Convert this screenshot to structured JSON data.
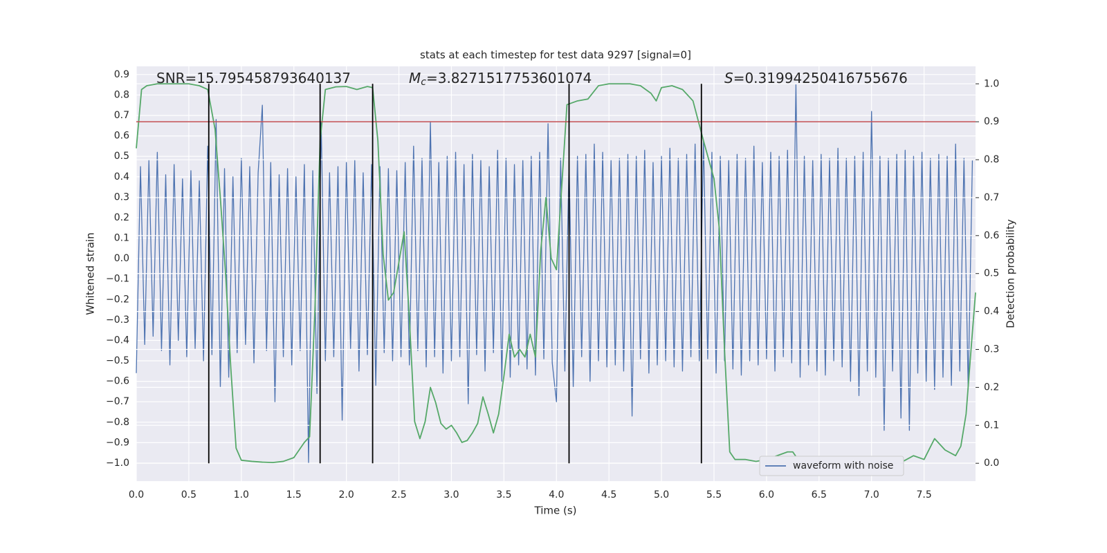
{
  "chart_data": {
    "type": "line",
    "title": "stats at each timestep for test data 9297 [signal=0]",
    "xlabel": "Time (s)",
    "ylabel": "Whitened strain",
    "y2label": "Detection probability",
    "annotations": [
      {
        "text": "SNR=15.795458793640137"
      },
      {
        "italic": "M",
        "subscript": "c",
        "text": "=3.8271517753601074"
      },
      {
        "italic": "S",
        "text": "=0.31994250416755676"
      }
    ],
    "xlim": [
      0,
      7.99
    ],
    "ylim": [
      -1.088,
      0.94
    ],
    "y2lim": [
      -0.047,
      1.046
    ],
    "xticks": [
      {
        "value": 0,
        "label": "0.0"
      },
      0.5,
      {
        "value": 1,
        "label": "1.0"
      },
      1.5,
      {
        "value": 2,
        "label": "2.0"
      },
      2.5,
      {
        "value": 3,
        "label": "3.0"
      },
      3.5,
      {
        "value": 4,
        "label": "4.0"
      },
      4.5,
      {
        "value": 5,
        "label": "5.0"
      },
      5.5,
      {
        "value": 6,
        "label": "6.0"
      },
      6.5,
      {
        "value": 7,
        "label": "7.0"
      },
      7.5
    ],
    "yticks": [
      0.9,
      0.8,
      0.7,
      0.6,
      0.5,
      0.4,
      0.3,
      0.2,
      0.1,
      {
        "value": 0,
        "label": "0.0"
      },
      {
        "value": -0.1,
        "label": "−0.1"
      },
      {
        "value": -0.2,
        "label": "−0.2"
      },
      {
        "value": -0.3,
        "label": "−0.3"
      },
      {
        "value": -0.4,
        "label": "−0.4"
      },
      {
        "value": -0.5,
        "label": "−0.5"
      },
      {
        "value": -0.6,
        "label": "−0.6"
      },
      {
        "value": -0.7,
        "label": "−0.7"
      },
      {
        "value": -0.8,
        "label": "−0.8"
      },
      {
        "value": -0.9,
        "label": "−0.9"
      },
      {
        "value": -1,
        "label": "−1.0"
      }
    ],
    "y2ticks": [
      {
        "value": 1,
        "label": "1.0"
      },
      0.9,
      0.8,
      0.7,
      0.6,
      0.5,
      0.4,
      0.3,
      0.2,
      0.1,
      {
        "value": 0,
        "label": "0.0"
      }
    ],
    "grid": true,
    "legend": "lower right",
    "background": "#eaeaf2",
    "series": [
      {
        "name": "waveform with noise",
        "color": "#4c72b0",
        "axis": "y",
        "x": [
          0,
          0.04,
          0.08,
          0.12,
          0.16,
          0.2,
          0.24,
          0.28,
          0.32,
          0.36,
          0.4,
          0.44,
          0.48,
          0.52,
          0.56,
          0.6,
          0.64,
          0.68,
          0.72,
          0.76,
          0.8,
          0.84,
          0.88,
          0.92,
          0.96,
          1,
          1.04,
          1.08,
          1.12,
          1.16,
          1.2,
          1.24,
          1.28,
          1.32,
          1.36,
          1.4,
          1.44,
          1.48,
          1.52,
          1.56,
          1.6,
          1.64,
          1.68,
          1.72,
          1.76,
          1.8,
          1.84,
          1.88,
          1.92,
          1.96,
          2,
          2.04,
          2.08,
          2.12,
          2.16,
          2.2,
          2.24,
          2.28,
          2.32,
          2.36,
          2.4,
          2.44,
          2.48,
          2.52,
          2.56,
          2.6,
          2.64,
          2.68,
          2.72,
          2.76,
          2.8,
          2.84,
          2.88,
          2.92,
          2.96,
          3,
          3.04,
          3.08,
          3.12,
          3.16,
          3.2,
          3.24,
          3.28,
          3.32,
          3.36,
          3.4,
          3.44,
          3.48,
          3.52,
          3.56,
          3.6,
          3.64,
          3.68,
          3.72,
          3.76,
          3.8,
          3.84,
          3.88,
          3.92,
          3.96,
          4,
          4.04,
          4.08,
          4.12,
          4.16,
          4.2,
          4.24,
          4.28,
          4.32,
          4.36,
          4.4,
          4.44,
          4.48,
          4.52,
          4.56,
          4.6,
          4.64,
          4.68,
          4.72,
          4.76,
          4.8,
          4.84,
          4.88,
          4.92,
          4.96,
          5,
          5.04,
          5.08,
          5.12,
          5.16,
          5.2,
          5.24,
          5.28,
          5.32,
          5.36,
          5.4,
          5.44,
          5.48,
          5.52,
          5.56,
          5.6,
          5.64,
          5.68,
          5.72,
          5.76,
          5.8,
          5.84,
          5.88,
          5.92,
          5.96,
          6,
          6.04,
          6.08,
          6.12,
          6.16,
          6.2,
          6.24,
          6.28,
          6.32,
          6.36,
          6.4,
          6.44,
          6.48,
          6.52,
          6.56,
          6.6,
          6.64,
          6.68,
          6.72,
          6.76,
          6.8,
          6.84,
          6.88,
          6.92,
          6.96,
          7,
          7.04,
          7.08,
          7.12,
          7.16,
          7.2,
          7.24,
          7.28,
          7.32,
          7.36,
          7.4,
          7.44,
          7.48,
          7.52,
          7.56,
          7.6,
          7.64,
          7.68,
          7.72,
          7.76,
          7.8,
          7.84,
          7.88,
          7.92,
          7.96
        ],
        "values": [
          -0.56,
          0.45,
          -0.42,
          0.48,
          -0.38,
          0.52,
          -0.45,
          0.41,
          -0.52,
          0.46,
          -0.4,
          0.39,
          -0.48,
          0.43,
          -0.44,
          0.38,
          -0.5,
          0.55,
          -0.47,
          0.68,
          -0.63,
          0.44,
          -0.58,
          0.4,
          -0.46,
          0.49,
          -0.42,
          0.45,
          -0.51,
          0.42,
          0.75,
          -0.45,
          0.47,
          -0.7,
          0.41,
          -0.48,
          0.44,
          -0.52,
          0.4,
          -0.45,
          0.46,
          -1,
          0.43,
          -0.66,
          0.67,
          -0.5,
          0.42,
          -0.48,
          0.45,
          -0.79,
          0.47,
          -0.44,
          0.48,
          -0.55,
          0.42,
          -0.47,
          0.46,
          -0.62,
          0.45,
          -0.46,
          0.44,
          -0.5,
          0.43,
          -0.48,
          0.47,
          -0.52,
          0.55,
          -0.45,
          0.49,
          -0.53,
          0.67,
          -0.48,
          0.47,
          -0.56,
          0.5,
          -0.5,
          0.52,
          -0.48,
          0.46,
          -0.71,
          0.51,
          -0.47,
          0.48,
          -0.55,
          0.45,
          -0.46,
          0.53,
          -0.6,
          0.49,
          -0.58,
          0.46,
          -0.52,
          0.48,
          -0.54,
          0.5,
          -0.57,
          0.52,
          -0.49,
          0.66,
          -0.51,
          -0.7,
          0.49,
          -0.55,
          0.48,
          -0.63,
          0.5,
          -0.48,
          0.51,
          -0.6,
          0.56,
          -0.5,
          0.52,
          -0.53,
          0.48,
          -0.52,
          0.49,
          -0.55,
          0.51,
          -0.77,
          0.5,
          -0.49,
          0.53,
          -0.56,
          0.47,
          -0.52,
          0.5,
          -0.5,
          0.54,
          -0.53,
          0.49,
          -0.55,
          0.51,
          -0.48,
          0.56,
          -0.5,
          0.58,
          -0.49,
          0.52,
          -0.56,
          0.5,
          -0.5,
          0.48,
          -0.54,
          0.51,
          -0.57,
          0.49,
          -0.5,
          0.55,
          -0.52,
          0.47,
          -0.49,
          0.52,
          -0.55,
          0.5,
          -0.48,
          0.53,
          -0.51,
          0.85,
          -0.58,
          0.5,
          -0.52,
          0.48,
          -0.55,
          0.51,
          -0.57,
          0.49,
          -0.5,
          0.54,
          -0.53,
          0.49,
          -0.6,
          0.5,
          -0.67,
          0.52,
          -0.55,
          0.72,
          -0.58,
          0.5,
          -0.84,
          0.49,
          -0.55,
          0.51,
          -0.78,
          0.53,
          -0.84,
          0.5,
          -0.56,
          0.52,
          -0.6,
          0.49,
          -0.64,
          0.51,
          -0.58,
          0.5,
          -0.62,
          0.56,
          -0.55,
          0.49,
          -0.64,
          0.48
        ]
      },
      {
        "color": "#55a868",
        "axis": "y2",
        "x": [
          0,
          0.05,
          0.1,
          0.2,
          0.3,
          0.4,
          0.5,
          0.6,
          0.68,
          0.75,
          0.8,
          0.85,
          0.9,
          0.95,
          1,
          1.1,
          1.2,
          1.3,
          1.4,
          1.5,
          1.6,
          1.65,
          1.7,
          1.75,
          1.8,
          1.9,
          2,
          2.1,
          2.2,
          2.25,
          2.3,
          2.35,
          2.4,
          2.45,
          2.5,
          2.55,
          2.6,
          2.65,
          2.7,
          2.75,
          2.8,
          2.85,
          2.9,
          2.95,
          3,
          3.05,
          3.1,
          3.15,
          3.2,
          3.25,
          3.3,
          3.35,
          3.4,
          3.45,
          3.5,
          3.55,
          3.6,
          3.65,
          3.7,
          3.75,
          3.8,
          3.85,
          3.9,
          3.95,
          4,
          4.1,
          4.2,
          4.3,
          4.4,
          4.5,
          4.6,
          4.7,
          4.8,
          4.9,
          4.95,
          5,
          5.1,
          5.2,
          5.3,
          5.4,
          5.5,
          5.55,
          5.6,
          5.65,
          5.7,
          5.8,
          5.9,
          6,
          6.1,
          6.2,
          6.25,
          6.3,
          6.4,
          6.5,
          6.8,
          7.2,
          7.3,
          7.4,
          7.5,
          7.6,
          7.7,
          7.8,
          7.85,
          7.9,
          7.95,
          7.99
        ],
        "values": [
          0.83,
          0.985,
          0.995,
          1,
          1,
          1,
          1,
          0.995,
          0.985,
          0.88,
          0.7,
          0.5,
          0.25,
          0.04,
          0.008,
          0.005,
          0.003,
          0.002,
          0.005,
          0.015,
          0.055,
          0.07,
          0.4,
          0.85,
          0.985,
          0.992,
          0.993,
          0.985,
          0.993,
          0.99,
          0.85,
          0.55,
          0.43,
          0.45,
          0.53,
          0.61,
          0.38,
          0.11,
          0.065,
          0.11,
          0.2,
          0.16,
          0.105,
          0.09,
          0.1,
          0.08,
          0.055,
          0.06,
          0.08,
          0.105,
          0.175,
          0.13,
          0.08,
          0.13,
          0.23,
          0.34,
          0.28,
          0.3,
          0.28,
          0.34,
          0.28,
          0.56,
          0.7,
          0.54,
          0.51,
          0.945,
          0.955,
          0.96,
          0.995,
          1,
          1,
          1,
          0.995,
          0.975,
          0.955,
          0.99,
          0.995,
          0.985,
          0.955,
          0.85,
          0.75,
          0.62,
          0.3,
          0.03,
          0.01,
          0.01,
          0.005,
          0.01,
          0.02,
          0.03,
          0.03,
          0.01,
          0.002,
          0,
          0,
          0,
          0.005,
          0.02,
          0.01,
          0.065,
          0.035,
          0.02,
          0.045,
          0.13,
          0.31,
          0.45
        ]
      }
    ],
    "hline": {
      "y": 0.9,
      "axis": "y2",
      "color": "#c44e52"
    },
    "vlines": {
      "x": [
        0.69,
        1.75,
        2.25,
        4.12,
        5.38
      ],
      "ymin": 0,
      "ymax": 1,
      "axis": "y2",
      "color": "#000000"
    }
  }
}
